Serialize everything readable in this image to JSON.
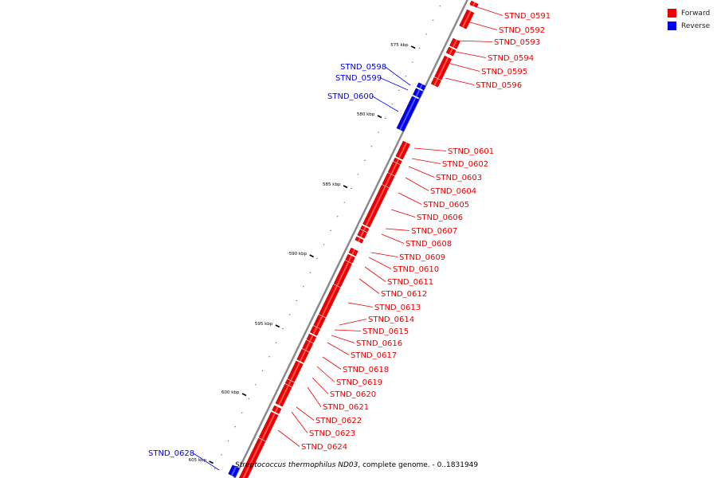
{
  "legend": {
    "items": [
      {
        "label": "Forward",
        "color": "#ee0000"
      },
      {
        "label": "Reverse",
        "color": "#0000ee"
      }
    ]
  },
  "caption": {
    "organism": "Streptococcus thermophilus ND03",
    "rest": ", complete genome. - 0..1831949"
  },
  "colors": {
    "forward": "#ee0000",
    "forward_light": "#ff6a6a",
    "forward_dark": "#b80000",
    "reverse": "#0000ee",
    "reverse_light": "#6a6aff",
    "reverse_dark": "#0000aa",
    "backbone": "#888888"
  },
  "ticks": [
    "575 kbp",
    "580 kbp",
    "585 kbp",
    "590 kbp",
    "595 kbp",
    "600 kbp",
    "605 kbp"
  ],
  "genes": [
    {
      "name": "STND_0591",
      "strand": "forward"
    },
    {
      "name": "STND_0592",
      "strand": "forward"
    },
    {
      "name": "STND_0593",
      "strand": "forward"
    },
    {
      "name": "STND_0594",
      "strand": "forward"
    },
    {
      "name": "STND_0595",
      "strand": "forward"
    },
    {
      "name": "STND_0596",
      "strand": "forward"
    },
    {
      "name": "STND_0598",
      "strand": "reverse"
    },
    {
      "name": "STND_0599",
      "strand": "reverse"
    },
    {
      "name": "STND_0600",
      "strand": "reverse"
    },
    {
      "name": "STND_0601",
      "strand": "forward"
    },
    {
      "name": "STND_0602",
      "strand": "forward"
    },
    {
      "name": "STND_0603",
      "strand": "forward"
    },
    {
      "name": "STND_0604",
      "strand": "forward"
    },
    {
      "name": "STND_0605",
      "strand": "forward"
    },
    {
      "name": "STND_0606",
      "strand": "forward"
    },
    {
      "name": "STND_0607",
      "strand": "forward"
    },
    {
      "name": "STND_0608",
      "strand": "forward"
    },
    {
      "name": "STND_0609",
      "strand": "forward"
    },
    {
      "name": "STND_0610",
      "strand": "forward"
    },
    {
      "name": "STND_0611",
      "strand": "forward"
    },
    {
      "name": "STND_0612",
      "strand": "forward"
    },
    {
      "name": "STND_0613",
      "strand": "forward"
    },
    {
      "name": "STND_0614",
      "strand": "forward"
    },
    {
      "name": "STND_0615",
      "strand": "forward"
    },
    {
      "name": "STND_0616",
      "strand": "forward"
    },
    {
      "name": "STND_0617",
      "strand": "forward"
    },
    {
      "name": "STND_0618",
      "strand": "forward"
    },
    {
      "name": "STND_0619",
      "strand": "forward"
    },
    {
      "name": "STND_0620",
      "strand": "forward"
    },
    {
      "name": "STND_0621",
      "strand": "forward"
    },
    {
      "name": "STND_0622",
      "strand": "forward"
    },
    {
      "name": "STND_0623",
      "strand": "forward"
    },
    {
      "name": "STND_0624",
      "strand": "forward"
    },
    {
      "name": "STND_0628",
      "strand": "reverse"
    }
  ]
}
